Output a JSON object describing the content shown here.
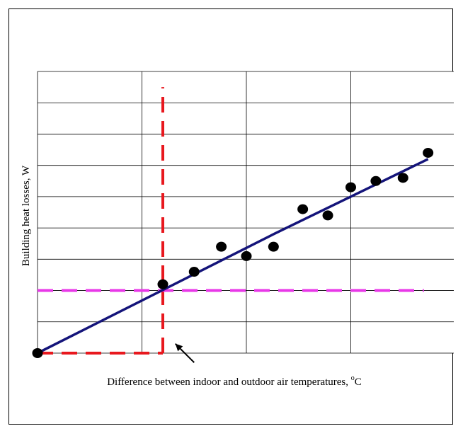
{
  "chart_data": {
    "type": "scatter",
    "ylabel": "Building heat losses, W",
    "xlabel_main": "Difference between indoor and outdoor air temperatures, ",
    "xlabel_sup": "o",
    "xlabel_unit": "C",
    "grid": true,
    "xlim": [
      0,
      20
    ],
    "ylim": [
      0,
      9
    ],
    "x_major_step": 5,
    "y_major_step": 1,
    "points": [
      {
        "x": 0.0,
        "y": 0.0
      },
      {
        "x": 6.0,
        "y": 2.2
      },
      {
        "x": 7.5,
        "y": 2.6
      },
      {
        "x": 8.8,
        "y": 3.4
      },
      {
        "x": 10.0,
        "y": 3.1
      },
      {
        "x": 11.3,
        "y": 3.4
      },
      {
        "x": 12.7,
        "y": 4.6
      },
      {
        "x": 13.9,
        "y": 4.4
      },
      {
        "x": 15.0,
        "y": 5.3
      },
      {
        "x": 16.2,
        "y": 5.5
      },
      {
        "x": 17.5,
        "y": 5.6
      },
      {
        "x": 18.7,
        "y": 6.4
      }
    ],
    "fit_line": [
      {
        "x": 0.0,
        "y": 0.0
      },
      {
        "x": 11.3,
        "y": 3.8
      },
      {
        "x": 18.7,
        "y": 6.2
      }
    ],
    "vertical_ref": {
      "x": 6.0,
      "y_from": 0.0,
      "y_to": 8.5,
      "color": "#e8181e"
    },
    "horizontal_ref_low": {
      "y": 0.0,
      "x_from": 0.0,
      "x_to": 6.0,
      "color": "#e8181e"
    },
    "horizontal_ref_high": {
      "y": 2.0,
      "x_from": 0.0,
      "x_to": 18.5,
      "color": "#e838e8"
    },
    "arrow": {
      "from": {
        "x": 7.5,
        "y": -0.3
      },
      "to": {
        "x": 6.6,
        "y": 0.3
      }
    },
    "colors": {
      "points": "#000000",
      "fit_line": "#14147a",
      "grid": "#000000"
    }
  }
}
